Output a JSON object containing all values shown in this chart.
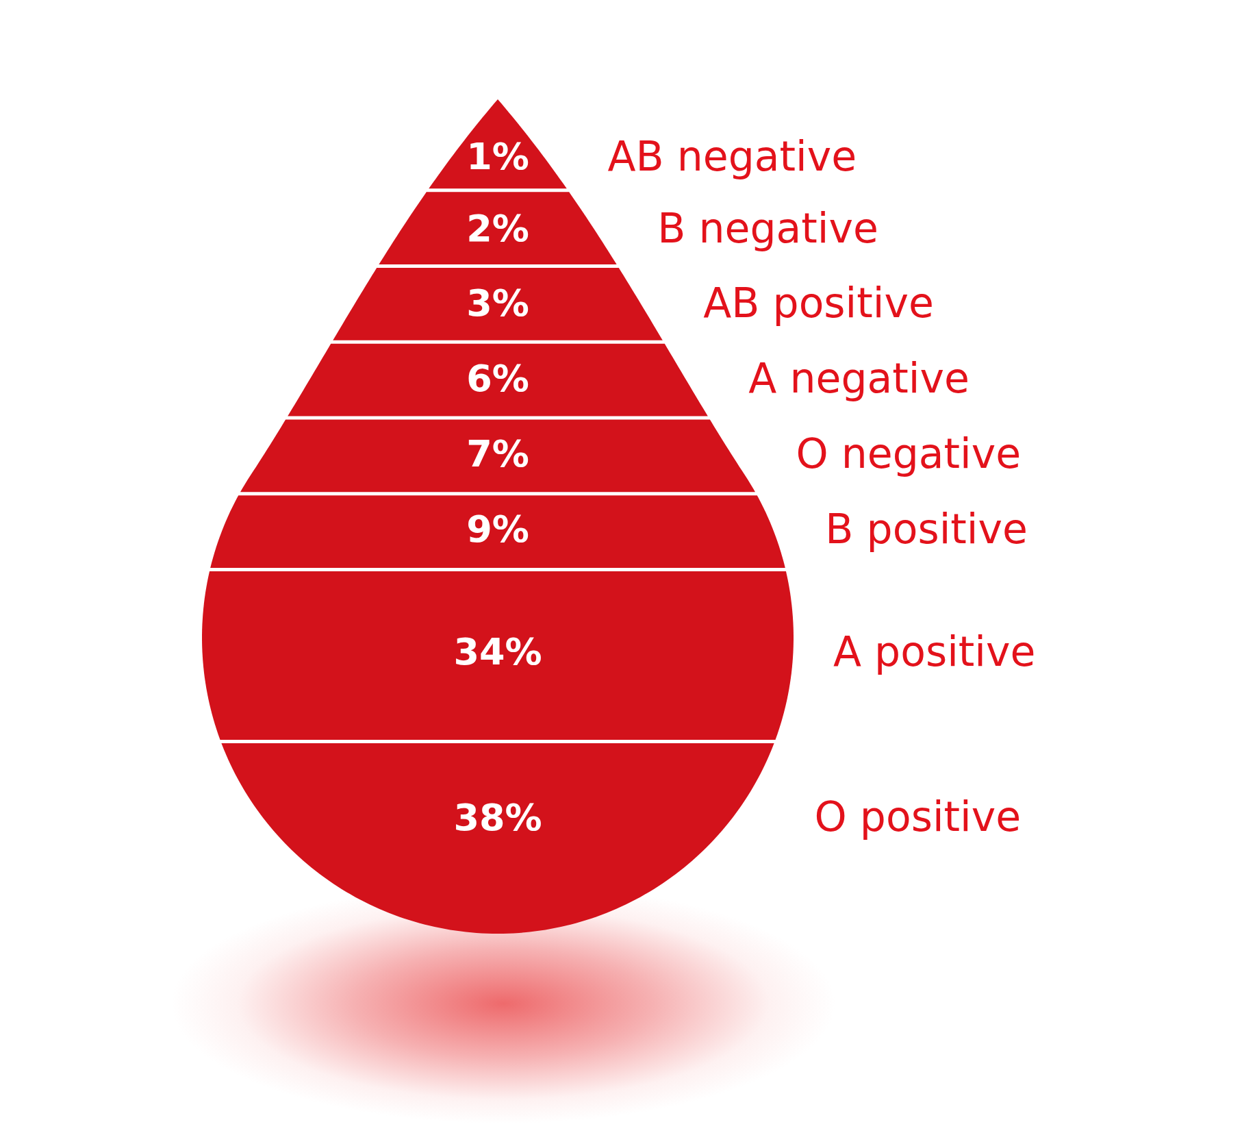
{
  "chart_data": {
    "type": "other",
    "categories": [
      "AB negative",
      "B negative",
      "AB positive",
      "A negative",
      "O negative",
      "B positive",
      "A positive",
      "O positive"
    ],
    "values": [
      1,
      2,
      3,
      6,
      7,
      9,
      34,
      38
    ],
    "value_labels": [
      "1%",
      "2%",
      "3%",
      "6%",
      "7%",
      "9%",
      "34%",
      "38%"
    ],
    "colors": [
      "#d3121b",
      "#d3121b",
      "#d3121b",
      "#d3121b",
      "#d3121b",
      "#d3121b",
      "#d3121b",
      "#d3121b"
    ]
  }
}
